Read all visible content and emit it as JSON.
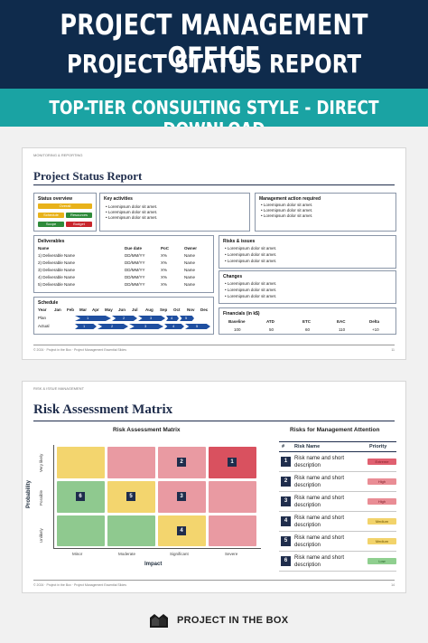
{
  "hero": {
    "line1": "PROJECT MANAGEMENT OFFICE",
    "line2": "PROJECT STATUS REPORT",
    "band": "TOP-TIER CONSULTING STYLE - DIRECT DOWNLOAD"
  },
  "slide1": {
    "crumb": "MONITORING & REPORTING",
    "title": "Project Status Report",
    "status_overview": {
      "heading": "Status overview",
      "pills": [
        {
          "label": "Overall",
          "color": "#e8b21a"
        },
        {
          "label": "Schedule",
          "color": "#e8b21a"
        },
        {
          "label": "Resources",
          "color": "#2e8b3a"
        },
        {
          "label": "Scope",
          "color": "#2e8b3a"
        },
        {
          "label": "Budget",
          "color": "#c8252c"
        }
      ]
    },
    "key_activities": {
      "heading": "Key activities",
      "items": [
        "Loremipsum dolor sit amet.",
        "Loremipsum dolor sit amet.",
        "Loremipsum dolor sit amet."
      ]
    },
    "management_action": {
      "heading": "Management action required",
      "items": [
        "Loremipsum dolor sit amet.",
        "Loremipsum dolor sit amet.",
        "Loremipsum dolor sit amet."
      ]
    },
    "deliverables": {
      "heading": "Deliverables",
      "columns": [
        "Name",
        "Due date",
        "PoC",
        "Owner"
      ],
      "rows": [
        [
          "1) Deliverable Name",
          "DD/MM/YY",
          "X%",
          "Name"
        ],
        [
          "2) Deliverable Name",
          "DD/MM/YY",
          "X%",
          "Name"
        ],
        [
          "3) Deliverable Name",
          "DD/MM/YY",
          "X%",
          "Name"
        ],
        [
          "4) Deliverable Name",
          "DD/MM/YY",
          "X%",
          "Name"
        ],
        [
          "5) Deliverable Name",
          "DD/MM/YY",
          "X%",
          "Name"
        ]
      ]
    },
    "risks": {
      "heading": "Risks & issues",
      "items": [
        "Loremipsum dolor sit amet.",
        "Loremipsum dolor sit amet.",
        "Loremipsum dolor sit amet."
      ]
    },
    "changes": {
      "heading": "Changes",
      "items": [
        "Loremipsum dolor sit amet.",
        "Loremipsum dolor sit amet.",
        "Loremipsum dolor sit amet."
      ]
    },
    "schedule": {
      "heading": "Schedule",
      "year": "Year",
      "months": [
        "Jan",
        "Feb",
        "Mar",
        "Apr",
        "May",
        "Jun",
        "Jul",
        "Aug",
        "Sep",
        "Oct",
        "Nov",
        "Dec"
      ],
      "plan": "Plan",
      "actual": "Actual",
      "plan_steps": [
        "1",
        "2",
        "3",
        "4",
        "5"
      ],
      "actual_steps": [
        "1",
        "2",
        "3",
        "4",
        "5"
      ]
    },
    "financials": {
      "heading": "Financials (in k$)",
      "columns": [
        "Baseline",
        "ATD",
        "ETC",
        "EAC",
        "Delta"
      ],
      "values": [
        "100",
        "50",
        "60",
        "110",
        "+10"
      ]
    },
    "footer": "© 2024 · Project in the Box · Project Management Essential Slides",
    "page": "11"
  },
  "slide2": {
    "crumb": "RISK & ISSUE MANAGEMENT",
    "title": "Risk Assessment Matrix",
    "matrix_title": "Risk Assessment  Matrix",
    "y_label": "Probability",
    "x_label": "Impact",
    "y_ticks": [
      "Very likely",
      "Possible",
      "Unlikely"
    ],
    "x_ticks": [
      "Minor",
      "Moderate",
      "Significant",
      "Severe"
    ],
    "markers": [
      "1",
      "2",
      "3",
      "4",
      "5",
      "6"
    ],
    "attention_title": "Risks for Management Attention",
    "table_headers": [
      "#",
      "Risk Name",
      "Priority"
    ],
    "risks": [
      {
        "n": "1",
        "name": "Risk name and short description",
        "priority": "Extreme",
        "color": "#e06070"
      },
      {
        "n": "2",
        "name": "Risk name and short description",
        "priority": "High",
        "color": "#e98d95"
      },
      {
        "n": "3",
        "name": "Risk name and short description",
        "priority": "High",
        "color": "#e98d95"
      },
      {
        "n": "4",
        "name": "Risk name and short description",
        "priority": "Medium",
        "color": "#f2d36b"
      },
      {
        "n": "5",
        "name": "Risk name and short description",
        "priority": "Medium",
        "color": "#f2d36b"
      },
      {
        "n": "6",
        "name": "Risk name and short description",
        "priority": "Low",
        "color": "#8fcf8f"
      }
    ],
    "footer": "© 2024 · Project in the Box · Project Management Essential Slides",
    "page": "14"
  },
  "brand": {
    "name": "PROJECT IN THE BOX"
  },
  "colors": {
    "navy": "#0f2b4c",
    "teal": "#1aa3a3",
    "red": "#d9515f",
    "pink": "#e99aa2",
    "yellow": "#f3d56e",
    "green": "#8fc98f"
  }
}
